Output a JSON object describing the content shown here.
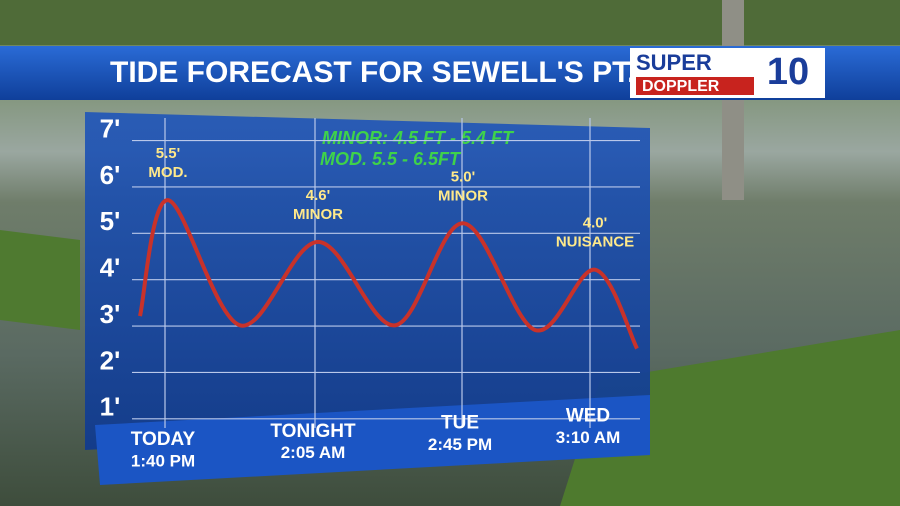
{
  "header": {
    "title": "TIDE FORECAST FOR SEWELL'S PT.",
    "logo_top": "SUPER",
    "logo_bottom": "DOPPLER",
    "logo_number": "10"
  },
  "chart_data": {
    "type": "line",
    "annotations": [
      "MINOR: 4.5 FT - 5.4 FT",
      "MOD. 5.5 - 6.5FT"
    ],
    "categories": [
      null,
      "TODAY",
      null,
      "TONIGHT",
      null,
      "TUE",
      null,
      "WED",
      null
    ],
    "category_times": [
      null,
      "1:40 PM",
      null,
      "2:05 AM",
      null,
      "2:45 PM",
      null,
      "3:10 AM",
      null
    ],
    "values": [
      3.0,
      5.5,
      2.8,
      4.6,
      2.8,
      5.0,
      2.7,
      4.0,
      2.3
    ],
    "value_labels": [
      null,
      "5.5'",
      null,
      "4.6'",
      null,
      "5.0'",
      null,
      "4.0'",
      null
    ],
    "peak_notes": [
      null,
      "MOD.",
      null,
      "MINOR",
      null,
      "MINOR",
      null,
      "NUISANCE",
      null
    ],
    "color": "#c8322a",
    "ylim": [
      0.5,
      7.4
    ],
    "yticks": [
      {
        "value": 1,
        "label": "1'"
      },
      {
        "value": 2,
        "label": "2'"
      },
      {
        "value": 3,
        "label": "3'"
      },
      {
        "value": 4,
        "label": "4'"
      },
      {
        "value": 5,
        "label": "5'"
      },
      {
        "value": 6,
        "label": "6'"
      },
      {
        "value": 7,
        "label": "7'"
      }
    ],
    "grid": true
  }
}
